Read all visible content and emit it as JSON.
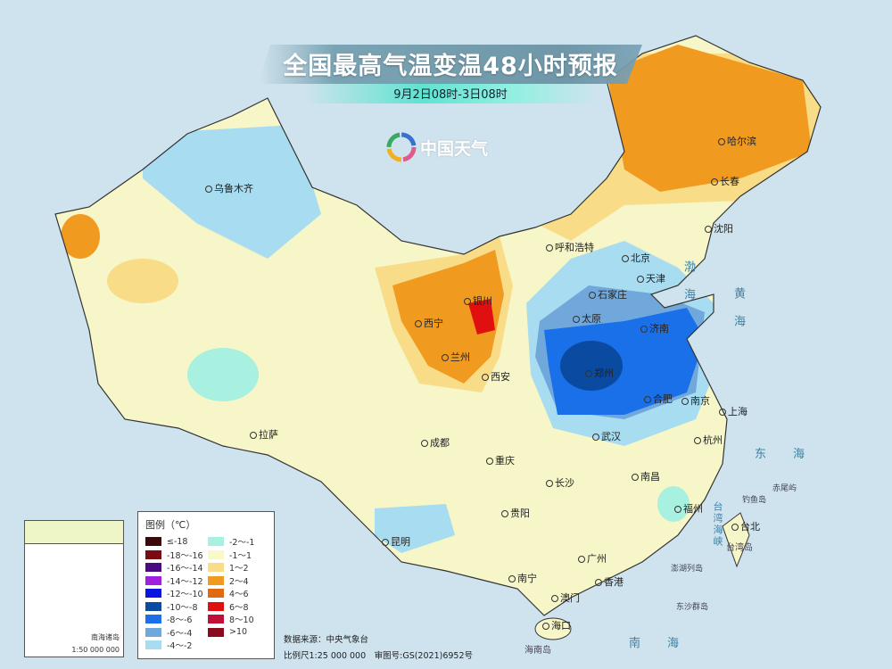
{
  "title": "全国最高气温变温48小时预报",
  "subtitle": "9月2日08时-3日08时",
  "logo_text": "中国天气",
  "cities": [
    "乌鲁木齐",
    "哈尔滨",
    "长春",
    "沈阳",
    "呼和浩特",
    "北京",
    "天津",
    "石家庄",
    "银川",
    "西宁",
    "太原",
    "济南",
    "兰州",
    "郑州",
    "西安",
    "合肥",
    "南京",
    "上海",
    "拉萨",
    "成都",
    "武汉",
    "杭州",
    "重庆",
    "长沙",
    "南昌",
    "贵阳",
    "福州",
    "台北",
    "昆明",
    "广州",
    "南宁",
    "澳门",
    "香港",
    "海口"
  ],
  "seas": {
    "bohai": "渤海",
    "huanghai": "黄海",
    "donghai": "东海",
    "nanhai": "南海",
    "strait": "台湾海峡"
  },
  "islands": [
    "钓鱼岛",
    "赤尾屿",
    "台湾岛",
    "澎湖列岛",
    "东沙群岛",
    "海南岛"
  ],
  "inset": {
    "title": "南海诸岛",
    "scale": "1:50 000 000"
  },
  "legend": {
    "title": "图例（℃）",
    "items": [
      {
        "label": "≤-18",
        "color": "#3a0a0a"
      },
      {
        "label": "-18～-16",
        "color": "#7a0a12"
      },
      {
        "label": "-16～-14",
        "color": "#4a0a80"
      },
      {
        "label": "-14～-12",
        "color": "#a020e0"
      },
      {
        "label": "-12～-10",
        "color": "#0a14e0"
      },
      {
        "label": "-10～-8",
        "color": "#0a4aa0"
      },
      {
        "label": "-8～-6",
        "color": "#1a70e8"
      },
      {
        "label": "-6～-4",
        "color": "#70a8dc"
      },
      {
        "label": "-4～-2",
        "color": "#a8dcf0"
      },
      {
        "label": "-2～-1",
        "color": "#a8f0e0"
      },
      {
        "label": "-1～1",
        "color": "#f8f8c8"
      },
      {
        "label": "1～2",
        "color": "#f8dc88"
      },
      {
        "label": "2～4",
        "color": "#f09a20"
      },
      {
        "label": "4～6",
        "color": "#e06a10"
      },
      {
        "label": "6～8",
        "color": "#e01010"
      },
      {
        "label": "8～10",
        "color": "#c0103a"
      },
      {
        "label": ">10",
        "color": "#8a0a20"
      }
    ]
  },
  "source": "数据来源：中央气象台",
  "scale_line": "比例尺1:25 000 000　审图号:GS(2021)6952号"
}
